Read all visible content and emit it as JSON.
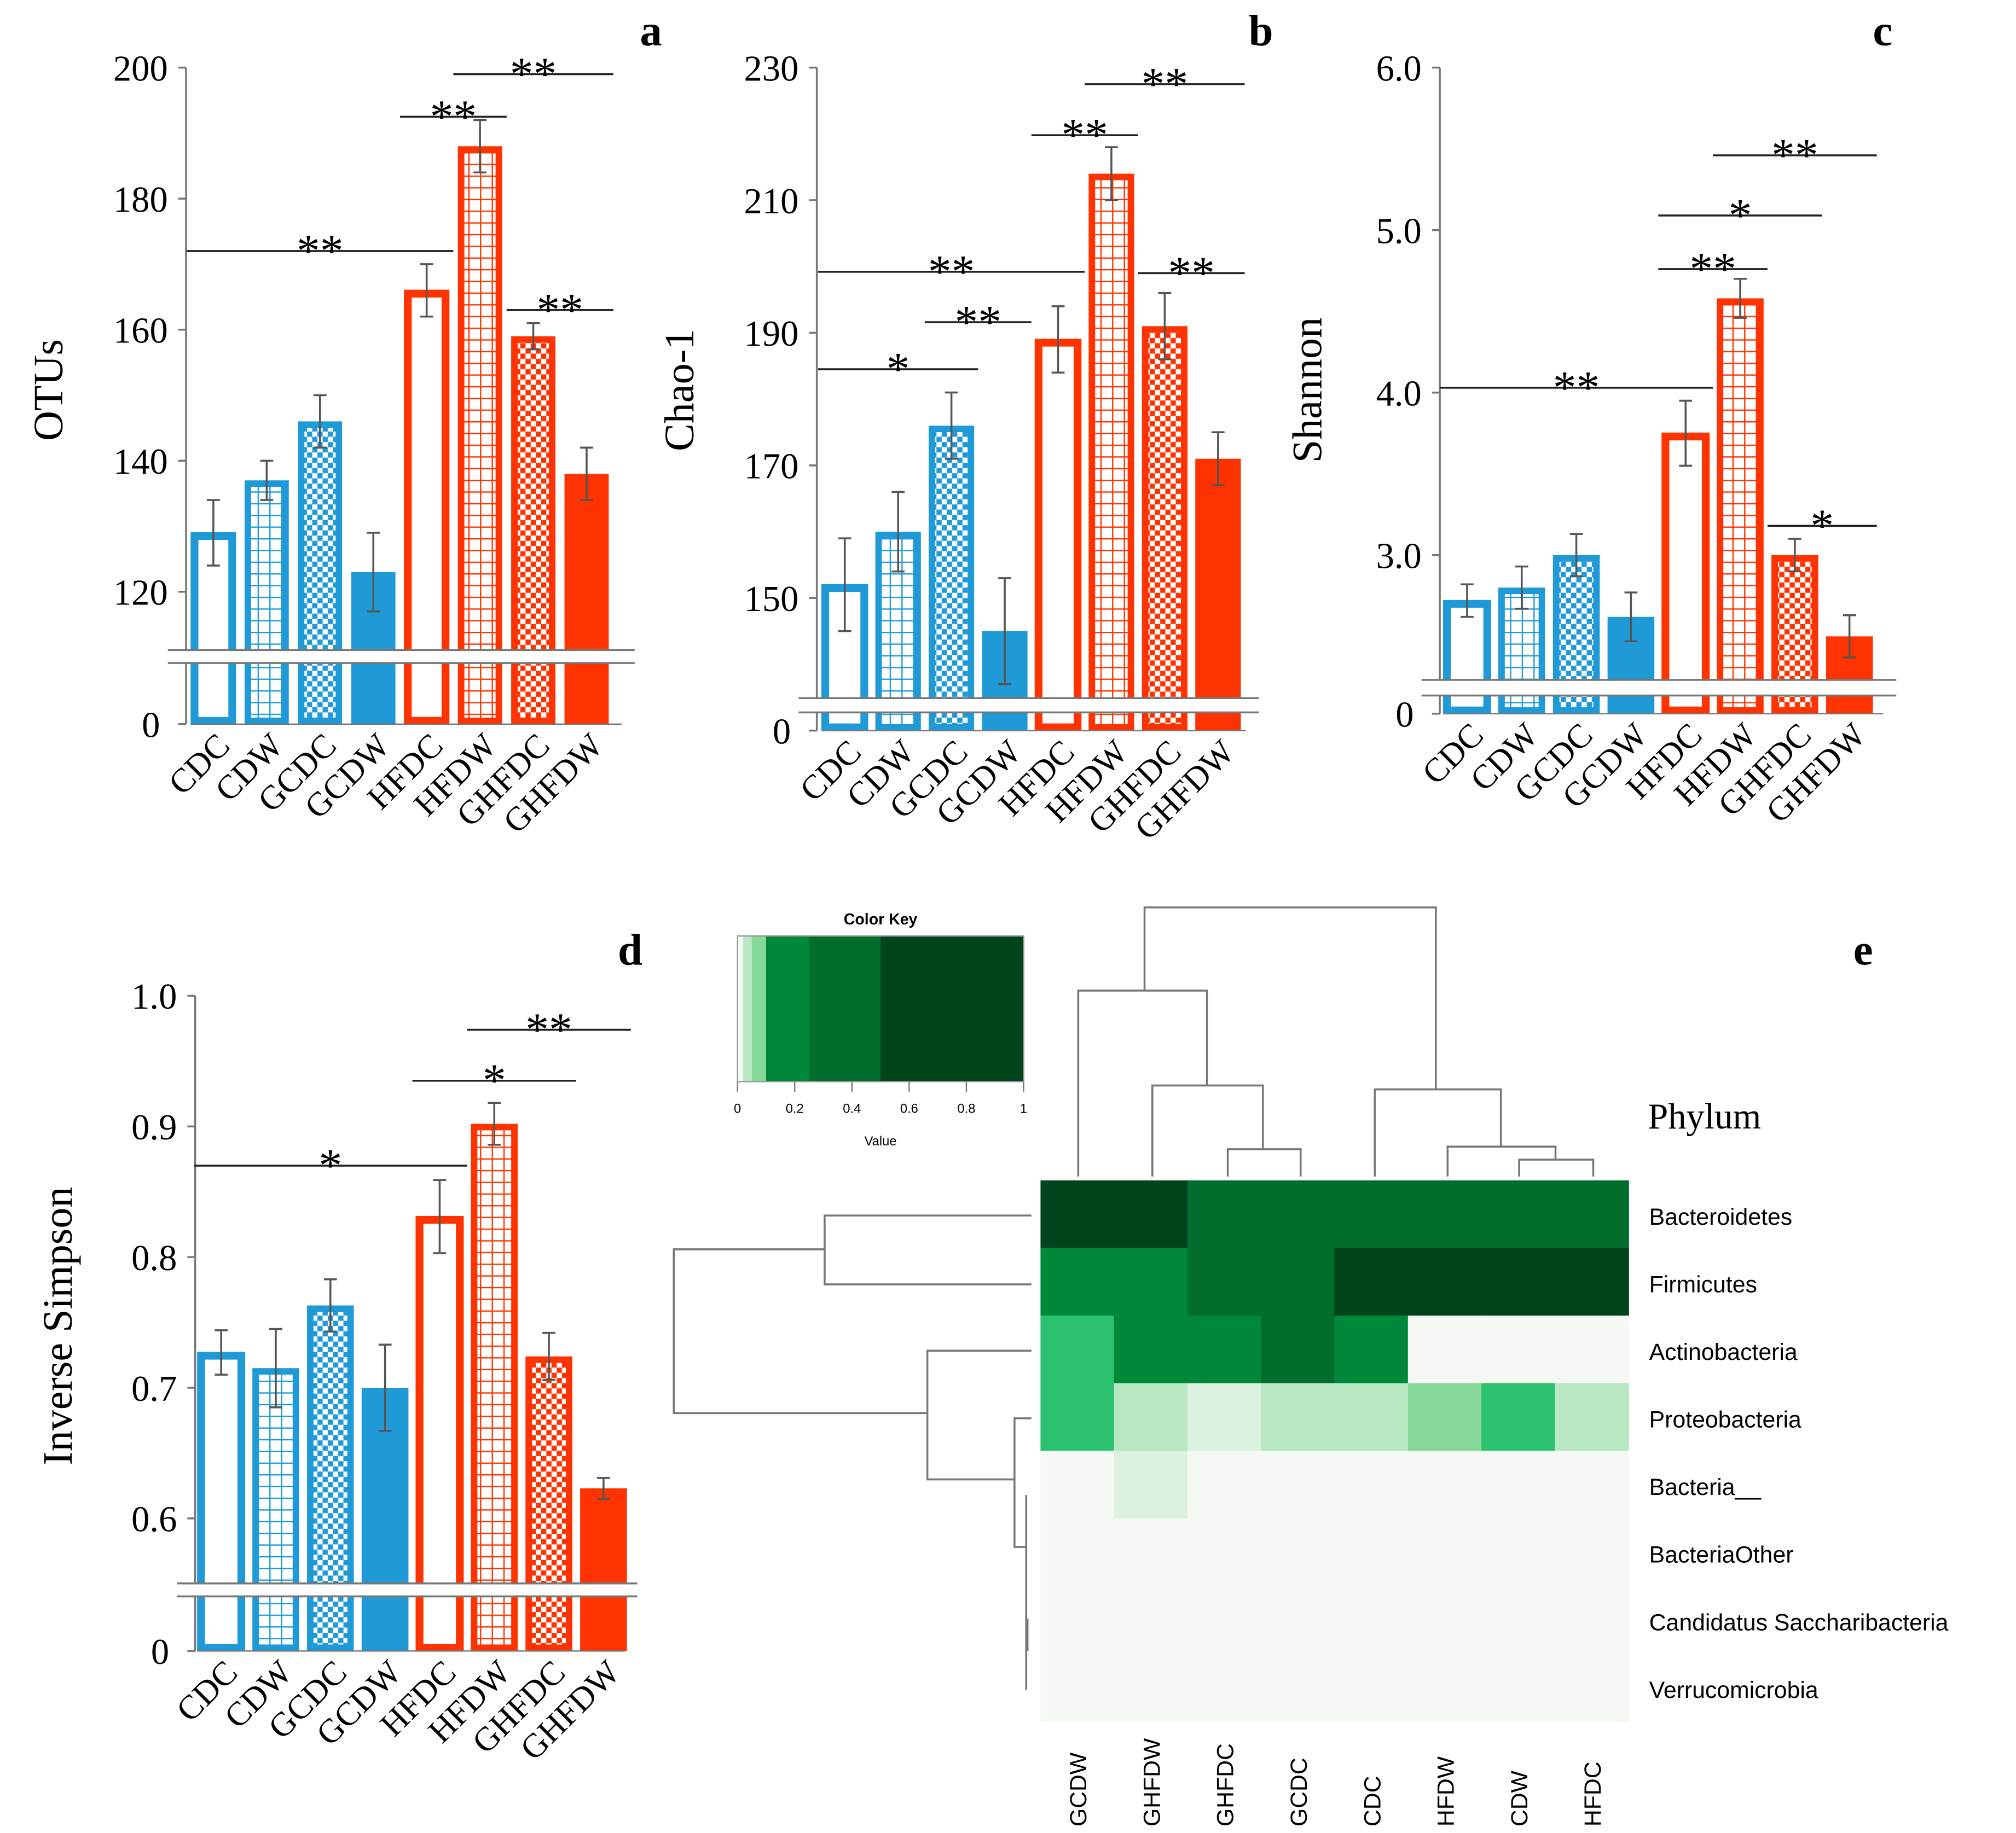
{
  "colors": {
    "blue": "#1f9ad6",
    "red": "#ff3300"
  },
  "chart_data": [
    {
      "panel": "a",
      "type": "bar",
      "ylabel": "OTUs",
      "categories": [
        "CDC",
        "CDW",
        "GCDC",
        "GCDW",
        "HFDC",
        "HFDW",
        "GHFDC",
        "GHFDW"
      ],
      "values": [
        129,
        137,
        146,
        123,
        166,
        188,
        159,
        138
      ],
      "errors": [
        5,
        3,
        4,
        6,
        4,
        4,
        2,
        4
      ],
      "yticks": [
        120,
        140,
        160,
        180,
        200
      ],
      "ybreak_bottom_tick": 0,
      "ylim": [
        120,
        200
      ],
      "significance": [
        {
          "from": "CDC",
          "to": "HFDC",
          "label": "**",
          "level": 172
        },
        {
          "from": "HFDC",
          "to": "HFDW",
          "label": "**",
          "level": 192.5
        },
        {
          "from": "HFDW",
          "to": "GHFDW",
          "label": "**",
          "level": 199
        },
        {
          "from": "GHFDC",
          "to": "GHFDW",
          "label": "**",
          "level": 163
        }
      ]
    },
    {
      "panel": "b",
      "type": "bar",
      "ylabel": "Chao-1",
      "categories": [
        "CDC",
        "CDW",
        "GCDC",
        "GCDW",
        "HFDC",
        "HFDW",
        "GHFDC",
        "GHFDW"
      ],
      "values": [
        152,
        160,
        176,
        145,
        189,
        214,
        191,
        171
      ],
      "errors": [
        7,
        6,
        5,
        8,
        5,
        4,
        5,
        4
      ],
      "yticks": [
        150,
        170,
        190,
        210,
        230
      ],
      "ybreak_bottom_tick": 0,
      "ylim": [
        140,
        230
      ],
      "significance": [
        {
          "from": "CDC",
          "to": "GCDC",
          "label": "*",
          "level": 184.5
        },
        {
          "from": "GCDC",
          "to": "GCDW",
          "label": "**",
          "level": 191.6
        },
        {
          "from": "CDC",
          "to": "HFDC",
          "label": "**",
          "level": 199.2
        },
        {
          "from": "HFDC",
          "to": "HFDW",
          "label": "**",
          "level": 219.8
        },
        {
          "from": "HFDW",
          "to": "GHFDW",
          "label": "**",
          "level": 227.5
        },
        {
          "from": "GHFDC",
          "to": "GHFDW",
          "label": "**",
          "level": 199
        }
      ]
    },
    {
      "panel": "c",
      "type": "bar",
      "ylabel": "Shannon",
      "categories": [
        "CDC",
        "CDW",
        "GCDC",
        "GCDW",
        "HFDC",
        "HFDW",
        "GHFDC",
        "GHFDW"
      ],
      "values": [
        2.72,
        2.8,
        3.0,
        2.62,
        3.75,
        4.58,
        3.0,
        2.5
      ],
      "errors": [
        0.1,
        0.13,
        0.13,
        0.15,
        0.2,
        0.12,
        0.1,
        0.13
      ],
      "yticks": [
        "3.0",
        "4.0",
        "5.0",
        "6.0"
      ],
      "ybreak_bottom_tick": 0,
      "ylim": [
        2.2,
        6.0
      ],
      "significance": [
        {
          "from": "CDC",
          "to": "HFDC",
          "label": "**",
          "level": 4.03
        },
        {
          "from": "HFDC",
          "to": "HFDW",
          "label": "**",
          "level": 4.76
        },
        {
          "from": "HFDC",
          "to": "GHFDC",
          "label": "*",
          "level": 5.09
        },
        {
          "from": "HFDW",
          "to": "GHFDW",
          "label": "**",
          "level": 5.46
        },
        {
          "from": "GHFDC",
          "to": "GHFDW",
          "label": "*",
          "level": 3.18
        }
      ]
    },
    {
      "panel": "d",
      "type": "bar",
      "ylabel": "Inverse Simpson",
      "categories": [
        "CDC",
        "CDW",
        "GCDC",
        "GCDW",
        "HFDC",
        "HFDW",
        "GHFDC",
        "GHFDW"
      ],
      "values": [
        0.727,
        0.715,
        0.763,
        0.7,
        0.831,
        0.902,
        0.724,
        0.623
      ],
      "errors": [
        0.017,
        0.03,
        0.02,
        0.033,
        0.028,
        0.016,
        0.018,
        0.008
      ],
      "yticks": [
        "0.6",
        "0.7",
        "0.8",
        "0.9",
        "1.0"
      ],
      "ybreak_bottom_tick": 0,
      "ylim": [
        0.55,
        1.0
      ],
      "significance": [
        {
          "from": "CDC",
          "to": "HFDC",
          "label": "*",
          "level": 0.87
        },
        {
          "from": "HFDC",
          "to": "GHFDC",
          "label": "*",
          "level": 0.935
        },
        {
          "from": "HFDW",
          "to": "GHFDW",
          "label": "**",
          "level": 0.974
        }
      ]
    },
    {
      "panel": "e",
      "type": "heatmap",
      "title": "Phylum",
      "columns": [
        "GCDW",
        "GHFDW",
        "GHFDC",
        "GCDC",
        "CDC",
        "HFDW",
        "CDW",
        "HFDC"
      ],
      "rows": [
        "Bacteroidetes",
        "Firmicutes",
        "Actinobacteria",
        "Proteobacteria",
        "Bacteria__",
        "BacteriaOther",
        "Candidatus Saccharibacteria",
        "Verrucomicrobia"
      ],
      "values": [
        [
          0.6,
          0.6,
          0.4,
          0.4,
          0.4,
          0.4,
          0.4,
          0.4
        ],
        [
          0.2,
          0.2,
          0.4,
          0.4,
          0.6,
          0.6,
          0.6,
          0.6
        ],
        [
          0.08,
          0.2,
          0.2,
          0.4,
          0.2,
          0.005,
          0.005,
          0.005
        ],
        [
          0.08,
          0.03,
          0.015,
          0.03,
          0.03,
          0.045,
          0.08,
          0.03
        ],
        [
          0.005,
          0.015,
          0.005,
          0.005,
          0.005,
          0.005,
          0.005,
          0.005
        ],
        [
          0.005,
          0.005,
          0.005,
          0.005,
          0.005,
          0.005,
          0.005,
          0.005
        ],
        [
          0.005,
          0.005,
          0.005,
          0.005,
          0.005,
          0.005,
          0.005,
          0.005
        ],
        [
          0.005,
          0.005,
          0.005,
          0.005,
          0.005,
          0.005,
          0.005,
          0.005
        ]
      ],
      "color_key": {
        "title": "Color Key",
        "xlabel": "Value",
        "ticks": [
          "0",
          "0.2",
          "0.4",
          "0.6",
          "0.8",
          "1"
        ],
        "range": [
          0,
          1
        ]
      }
    }
  ]
}
